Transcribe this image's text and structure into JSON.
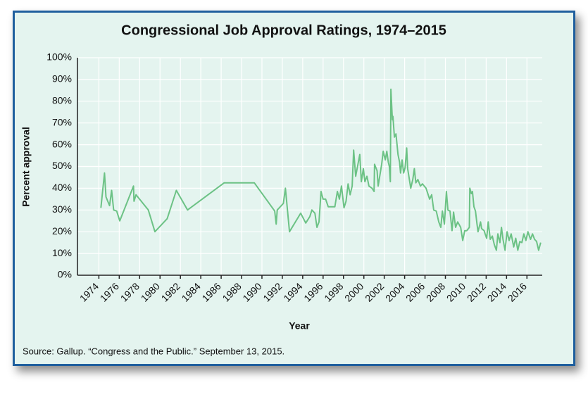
{
  "chart_data": {
    "type": "line",
    "title": "Congressional Job Approval Ratings, 1974–2015",
    "x_label": "Year",
    "y_label": "Percent approval",
    "source": "Source: Gallup. “Congress and the Public.” September 13, 2015.",
    "xlim": [
      1971.9,
      2017.5
    ],
    "xticks": [
      1974,
      1976,
      1978,
      1980,
      1982,
      1984,
      1986,
      1988,
      1990,
      1992,
      1994,
      1996,
      1998,
      2000,
      2002,
      2004,
      2006,
      2008,
      2010,
      2012,
      2014,
      2016
    ],
    "ylim": [
      0,
      100
    ],
    "yticks": [
      {
        "value": 0,
        "label": "0%"
      },
      {
        "value": 10,
        "label": "10%"
      },
      {
        "value": 20,
        "label": "20%"
      },
      {
        "value": 30,
        "label": "30%"
      },
      {
        "value": 40,
        "label": "40%"
      },
      {
        "value": 50,
        "label": "50%"
      },
      {
        "value": 60,
        "label": "60%"
      },
      {
        "value": 70,
        "label": "70%"
      },
      {
        "value": 80,
        "label": "80%"
      },
      {
        "value": 90,
        "label": "90%"
      },
      {
        "value": 100,
        "label": "100%"
      }
    ],
    "grid": true,
    "color": "#6cc285",
    "x": [
      1974.2,
      1974.55,
      1974.7,
      1975.05,
      1975.25,
      1975.45,
      1975.75,
      1976.05,
      1977.4,
      1977.45,
      1977.65,
      1978.85,
      1979.5,
      1980.7,
      1981.6,
      1982.7,
      1986.3,
      1989.25,
      1991.25,
      1991.4,
      1991.5,
      1992.1,
      1992.3,
      1992.7,
      1993.8,
      1994.3,
      1994.7,
      1994.9,
      1995.2,
      1995.4,
      1995.6,
      1995.8,
      1996.0,
      1996.25,
      1996.5,
      1997.15,
      1997.4,
      1997.6,
      1997.8,
      1998.05,
      1998.25,
      1998.45,
      1998.65,
      1998.85,
      1999.0,
      1999.2,
      1999.4,
      1999.6,
      1999.75,
      1999.95,
      2000.1,
      2000.3,
      2000.5,
      2000.8,
      2001.0,
      2001.05,
      2001.3,
      2001.4,
      2001.75,
      2001.9,
      2002.1,
      2002.25,
      2002.4,
      2002.5,
      2002.6,
      2002.65,
      2002.8,
      2002.85,
      2003.0,
      2003.15,
      2003.35,
      2003.5,
      2003.6,
      2003.75,
      2003.9,
      2004.05,
      2004.2,
      2004.3,
      2004.6,
      2004.8,
      2004.95,
      2005.1,
      2005.3,
      2005.55,
      2005.75,
      2006.1,
      2006.45,
      2006.65,
      2006.85,
      2007.1,
      2007.35,
      2007.55,
      2007.7,
      2007.9,
      2008.1,
      2008.25,
      2008.45,
      2008.65,
      2008.8,
      2009.0,
      2009.2,
      2009.5,
      2009.7,
      2009.9,
      2010.1,
      2010.35,
      2010.4,
      2010.55,
      2010.65,
      2010.8,
      2010.95,
      2011.1,
      2011.2,
      2011.45,
      2011.55,
      2011.8,
      2011.9,
      2012.05,
      2012.2,
      2012.4,
      2012.6,
      2012.8,
      2013.0,
      2013.15,
      2013.35,
      2013.5,
      2013.65,
      2013.85,
      2014.05,
      2014.25,
      2014.45,
      2014.7,
      2014.9,
      2015.1,
      2015.3,
      2015.5,
      2015.7,
      2015.9,
      2016.1,
      2016.35,
      2016.55,
      2016.75,
      2016.95,
      2017.15,
      2017.35
    ],
    "values": [
      31,
      47,
      36,
      32,
      39,
      30,
      29.5,
      25,
      41,
      34,
      37,
      30,
      20,
      26,
      39,
      30,
      42.5,
      42.5,
      29.5,
      23.5,
      30,
      33,
      40,
      20,
      28.5,
      24,
      27,
      30,
      28.5,
      22,
      24.5,
      38.5,
      35,
      35,
      31.5,
      31.5,
      38.5,
      35,
      41,
      31,
      34,
      42,
      37,
      41,
      57.5,
      45.5,
      50.5,
      55.5,
      43,
      49,
      43,
      45.5,
      41,
      40,
      38.5,
      51,
      48,
      41,
      51,
      57,
      53,
      57,
      52,
      50,
      43,
      85.5,
      71.5,
      73,
      63.5,
      65,
      55.5,
      52,
      47,
      53,
      47,
      49.5,
      58.5,
      49,
      40,
      44,
      49,
      42.5,
      44,
      41,
      42,
      40,
      35,
      37,
      30,
      29.5,
      24.5,
      22,
      29.5,
      23.5,
      38.5,
      30,
      29.5,
      20.5,
      29,
      22,
      24.5,
      22,
      16,
      20.5,
      20.5,
      22,
      40,
      37.5,
      38.5,
      31.5,
      29.5,
      23.5,
      20,
      24.5,
      21.5,
      20.5,
      19,
      17,
      24.5,
      16.5,
      18,
      14,
      11.5,
      19,
      15,
      22,
      16.5,
      11.5,
      20,
      16,
      19,
      13,
      17,
      11.5,
      15.5,
      15,
      19,
      16,
      20,
      16.5,
      19,
      16.5,
      15.5,
      11.5,
      15
    ]
  }
}
